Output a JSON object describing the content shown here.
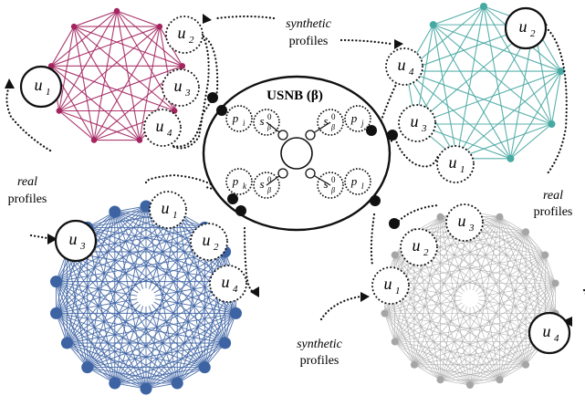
{
  "center": {
    "title": "USNB (β)",
    "slots": [
      {
        "p": "p",
        "p_sub": "i",
        "s_sub": "i"
      },
      {
        "p": "p",
        "p_sub": "j",
        "s_sub": "j"
      },
      {
        "p": "p",
        "p_sub": "k",
        "s_sub": "k"
      },
      {
        "p": "p",
        "p_sub": "l",
        "s_sub": "l"
      }
    ],
    "s_main": "s",
    "s_sup": "0",
    "s_base": "β"
  },
  "labels": {
    "synthetic_top": {
      "line1": "synthetic",
      "line2": "profiles"
    },
    "synthetic_bottom": {
      "line1": "synthetic",
      "line2": "profiles"
    },
    "real_left": {
      "line1": "real",
      "line2": "profiles"
    },
    "real_right": {
      "line1": "real",
      "line2": "profiles"
    }
  },
  "graphs": [
    {
      "name": "top-left",
      "color": "#a3245f",
      "nodes": 9
    },
    {
      "name": "top-right",
      "color": "#48a9a3",
      "nodes": 9
    },
    {
      "name": "bottom-left",
      "color": "#3d63a3",
      "nodes": 18
    },
    {
      "name": "bottom-right",
      "color": "#a5a5a5",
      "nodes": 18
    }
  ],
  "users": {
    "top_left": [
      {
        "main": "u",
        "sub": "1"
      },
      {
        "main": "u",
        "sub": "2"
      },
      {
        "main": "u",
        "sub": "3"
      },
      {
        "main": "u",
        "sub": "4"
      }
    ],
    "top_right": [
      {
        "main": "u",
        "sub": "2"
      },
      {
        "main": "u",
        "sub": "4"
      },
      {
        "main": "u",
        "sub": "3"
      },
      {
        "main": "u",
        "sub": "1"
      }
    ],
    "bottom_left": [
      {
        "main": "u",
        "sub": "3"
      },
      {
        "main": "u",
        "sub": "1"
      },
      {
        "main": "u",
        "sub": "2"
      },
      {
        "main": "u",
        "sub": "4"
      }
    ],
    "bottom_right": [
      {
        "main": "u",
        "sub": "3"
      },
      {
        "main": "u",
        "sub": "2"
      },
      {
        "main": "u",
        "sub": "1"
      },
      {
        "main": "u",
        "sub": "4"
      }
    ]
  }
}
